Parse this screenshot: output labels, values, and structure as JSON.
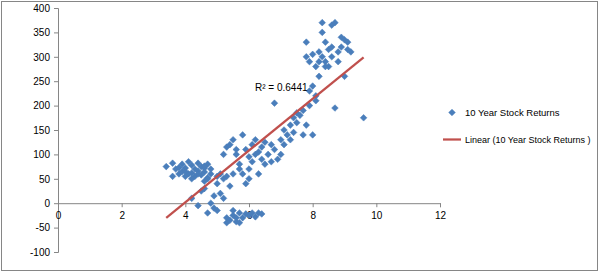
{
  "chart_data": {
    "type": "scatter",
    "xlim": [
      0,
      12
    ],
    "ylim": [
      -100,
      400
    ],
    "xticks": [
      0,
      2,
      4,
      6,
      8,
      10,
      12
    ],
    "yticks": [
      -100,
      -50,
      0,
      50,
      100,
      150,
      200,
      250,
      300,
      350,
      400
    ],
    "grid": false,
    "legend": "right",
    "annotations": [
      {
        "text": "R² = 0.6441"
      }
    ],
    "series": [
      {
        "name": "10 Year Stock Returns",
        "type": "scatter",
        "marker": "diamond",
        "color": "#4A7EBB",
        "x": [
          3.4,
          3.6,
          3.7,
          3.8,
          3.9,
          3.9,
          4.0,
          4.0,
          4.1,
          4.1,
          4.2,
          4.2,
          4.3,
          4.3,
          4.4,
          4.4,
          4.5,
          4.5,
          4.6,
          4.6,
          4.7,
          4.7,
          4.8,
          4.8,
          3.6,
          3.8,
          4.0,
          4.2,
          4.4,
          4.6,
          4.2,
          4.4,
          4.5,
          4.6,
          4.7,
          4.8,
          4.9,
          5.0,
          5.0,
          5.1,
          5.1,
          5.2,
          5.2,
          4.6,
          4.9,
          5.3,
          5.4,
          5.0,
          4.7,
          5.3,
          5.3,
          5.4,
          5.5,
          5.6,
          5.7,
          5.8,
          5.9,
          6.0,
          6.1,
          6.3,
          5.5,
          5.7,
          6.2,
          6.4,
          5.6,
          5.4,
          5.5,
          5.5,
          5.6,
          5.7,
          5.8,
          5.9,
          6.0,
          6.0,
          6.1,
          6.1,
          6.2,
          6.2,
          6.3,
          6.4,
          6.4,
          6.5,
          6.5,
          5.6,
          5.8,
          5.3,
          5.2,
          5.7,
          6.0,
          6.3,
          5.9,
          6.6,
          6.7,
          6.8,
          6.8,
          6.9,
          7.0,
          7.0,
          7.1,
          7.2,
          7.3,
          7.4,
          7.4,
          7.5,
          7.5,
          7.6,
          7.7,
          7.7,
          7.3,
          7.1,
          6.7,
          7.8,
          7.8,
          7.9,
          7.9,
          8.0,
          8.0,
          8.1,
          8.1,
          8.2,
          8.2,
          8.3,
          8.3,
          8.4,
          8.4,
          8.5,
          8.5,
          8.6,
          8.6,
          8.7,
          8.7,
          8.8,
          8.8,
          8.9,
          8.9,
          9.0,
          9.0,
          9.1,
          9.1,
          9.2,
          9.6,
          7.9,
          8.1,
          8.2,
          8.4,
          8.6,
          8.3,
          8.0,
          7.8
        ],
        "values": [
          75,
          55,
          70,
          60,
          80,
          65,
          72,
          55,
          85,
          60,
          78,
          62,
          70,
          55,
          82,
          66,
          75,
          58,
          72,
          64,
          80,
          52,
          70,
          60,
          82,
          73,
          65,
          50,
          60,
          76,
          10,
          -5,
          25,
          30,
          -20,
          0,
          15,
          40,
          55,
          20,
          60,
          50,
          10,
          45,
          -10,
          55,
          35,
          -15,
          50,
          -30,
          -40,
          -35,
          -25,
          -38,
          -20,
          -30,
          -22,
          -25,
          -20,
          -20,
          -15,
          -40,
          -28,
          -22,
          -30,
          120,
          130,
          60,
          100,
          80,
          140,
          110,
          95,
          70,
          120,
          85,
          100,
          130,
          105,
          90,
          115,
          80,
          125,
          110,
          60,
          115,
          100,
          70,
          50,
          60,
          40,
          100,
          85,
          205,
          110,
          90,
          130,
          100,
          150,
          140,
          160,
          175,
          145,
          185,
          165,
          180,
          190,
          140,
          130,
          120,
          120,
          300,
          330,
          230,
          290,
          240,
          305,
          220,
          280,
          310,
          290,
          370,
          300,
          290,
          330,
          315,
          280,
          365,
          300,
          370,
          195,
          310,
          290,
          340,
          320,
          260,
          335,
          330,
          315,
          310,
          175,
          200,
          210,
          260,
          280,
          320,
          350,
          140,
          160
        ]
      },
      {
        "name": "Linear (10 Year Stock Returns )",
        "type": "line",
        "line_style": "solid",
        "color": "#C0504D",
        "x": [
          3.4,
          9.6
        ],
        "values": [
          -30,
          299
        ]
      }
    ]
  }
}
